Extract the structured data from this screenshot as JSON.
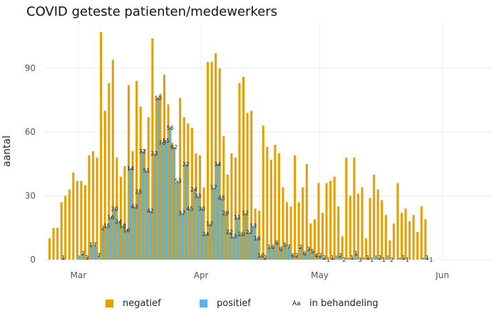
{
  "chart_data": {
    "type": "bar",
    "title": "COVID geteste patienten/medewerkers",
    "ylabel": "aantal",
    "xlabel": "",
    "ylim": [
      0,
      112
    ],
    "yticks": [
      0,
      30,
      60,
      90
    ],
    "x_ticks": [
      {
        "label": "Mar",
        "index": 7
      },
      {
        "label": "Apr",
        "index": 38
      },
      {
        "label": "May",
        "index": 68
      },
      {
        "label": "Jun",
        "index": 99
      }
    ],
    "grid": true,
    "legend_position": "bottom",
    "colors": {
      "negatief": "#E69F00",
      "positief": "#56B4E9"
    },
    "series": [
      {
        "name": "negatief",
        "values": [
          10,
          15,
          15,
          27,
          30,
          33,
          41,
          37,
          37,
          35,
          49,
          51,
          48,
          107,
          70,
          83,
          94,
          48,
          39,
          44,
          82,
          51,
          84,
          72,
          52,
          67,
          104,
          76,
          78,
          87,
          73,
          55,
          36,
          76,
          67,
          64,
          62,
          50,
          49,
          34,
          93,
          93,
          97,
          90,
          58,
          40,
          50,
          48,
          83,
          86,
          69,
          70,
          24,
          23,
          63,
          53,
          47,
          54,
          50,
          34,
          27,
          25,
          49,
          27,
          34,
          45,
          17,
          19,
          36,
          22,
          36,
          37,
          39,
          25,
          11,
          48,
          30,
          48,
          31,
          34,
          10,
          29,
          40,
          33,
          28,
          21,
          9,
          17,
          36,
          22,
          24,
          18,
          21,
          13,
          25,
          19
        ]
      },
      {
        "name": "positief",
        "values": [
          0,
          0,
          0,
          1,
          0,
          0,
          0,
          2,
          3,
          1,
          7,
          7,
          2,
          15,
          16,
          20,
          24,
          18,
          16,
          14,
          43,
          25,
          32,
          51,
          42,
          23,
          50,
          76,
          55,
          56,
          62,
          53,
          37,
          22,
          45,
          24,
          33,
          30,
          24,
          12,
          17,
          34,
          45,
          29,
          22,
          13,
          11,
          20,
          12,
          22,
          13,
          16,
          10,
          2,
          1,
          6,
          6,
          8,
          5,
          7,
          6,
          2,
          2,
          6,
          3,
          5,
          4,
          2,
          2,
          1,
          0,
          1,
          2,
          2,
          0,
          1,
          1,
          3,
          0,
          1,
          1,
          0,
          2,
          1,
          0,
          2,
          0,
          0,
          1,
          1,
          0,
          0,
          0,
          0,
          1,
          1
        ]
      }
    ],
    "annotations": [
      {
        "index": 3,
        "text": "1"
      },
      {
        "index": 8,
        "text": "2"
      },
      {
        "index": 9,
        "text": "3"
      },
      {
        "index": 10,
        "text": "1"
      },
      {
        "index": 11,
        "text": "7"
      },
      {
        "index": 12,
        "text": "7"
      },
      {
        "index": 13,
        "text": "2"
      },
      {
        "index": 14,
        "text": "15"
      },
      {
        "index": 15,
        "text": "16"
      },
      {
        "index": 16,
        "text": "20"
      },
      {
        "index": 17,
        "text": "24"
      },
      {
        "index": 18,
        "text": "18"
      },
      {
        "index": 19,
        "text": "16"
      },
      {
        "index": 20,
        "text": "14"
      },
      {
        "index": 21,
        "text": "43"
      },
      {
        "index": 22,
        "text": "25"
      },
      {
        "index": 23,
        "text": "32"
      },
      {
        "index": 24,
        "text": "51"
      },
      {
        "index": 25,
        "text": "42"
      },
      {
        "index": 26,
        "text": "23"
      },
      {
        "index": 27,
        "text": "50"
      },
      {
        "index": 28,
        "text": "76"
      },
      {
        "index": 29,
        "text": "55"
      },
      {
        "index": 30,
        "text": "56"
      },
      {
        "index": 31,
        "text": "62"
      },
      {
        "index": 32,
        "text": "53"
      },
      {
        "index": 33,
        "text": "37"
      },
      {
        "index": 34,
        "text": "22"
      },
      {
        "index": 35,
        "text": "45"
      },
      {
        "index": 36,
        "text": "24"
      },
      {
        "index": 37,
        "text": "33"
      },
      {
        "index": 38,
        "text": "30"
      },
      {
        "index": 39,
        "text": "24"
      },
      {
        "index": 40,
        "text": "12"
      },
      {
        "index": 41,
        "text": "17"
      },
      {
        "index": 42,
        "text": "34"
      },
      {
        "index": 43,
        "text": "45"
      },
      {
        "index": 44,
        "text": "29"
      },
      {
        "index": 45,
        "text": "22"
      },
      {
        "index": 46,
        "text": "13"
      },
      {
        "index": 47,
        "text": "11"
      },
      {
        "index": 48,
        "text": "20"
      },
      {
        "index": 49,
        "text": "12"
      },
      {
        "index": 50,
        "text": "22"
      },
      {
        "index": 51,
        "text": "13"
      },
      {
        "index": 52,
        "text": "16"
      },
      {
        "index": 53,
        "text": "10"
      },
      {
        "index": 54,
        "text": "2"
      },
      {
        "index": 55,
        "text": "1"
      },
      {
        "index": 56,
        "text": "6"
      },
      {
        "index": 57,
        "text": "6"
      },
      {
        "index": 58,
        "text": "8"
      },
      {
        "index": 59,
        "text": "5"
      },
      {
        "index": 60,
        "text": "7"
      },
      {
        "index": 61,
        "text": "6"
      },
      {
        "index": 62,
        "text": "2"
      },
      {
        "index": 63,
        "text": "2"
      },
      {
        "index": 64,
        "text": "6"
      },
      {
        "index": 65,
        "text": "3"
      },
      {
        "index": 66,
        "text": "5"
      },
      {
        "index": 67,
        "text": "4"
      },
      {
        "index": 68,
        "text": "2"
      },
      {
        "index": 69,
        "text": "2"
      },
      {
        "index": 70,
        "text": "1"
      },
      {
        "index": 71,
        "text": "1"
      },
      {
        "index": 73,
        "text": "2"
      },
      {
        "index": 74,
        "text": "2"
      },
      {
        "index": 76,
        "text": "1"
      },
      {
        "index": 77,
        "text": "1"
      },
      {
        "index": 78,
        "text": "3"
      },
      {
        "index": 80,
        "text": "1"
      },
      {
        "index": 81,
        "text": "1"
      },
      {
        "index": 83,
        "text": "2"
      },
      {
        "index": 84,
        "text": "1"
      },
      {
        "index": 86,
        "text": "2"
      },
      {
        "index": 89,
        "text": "1"
      },
      {
        "index": 90,
        "text": "1"
      },
      {
        "index": 95,
        "text": "1"
      },
      {
        "index": 96,
        "text": "1"
      }
    ]
  },
  "legend": {
    "items": [
      {
        "name": "negatief",
        "type": "swatch",
        "color": "#E69F00"
      },
      {
        "name": "positief",
        "type": "swatch",
        "color": "#56B4E9"
      },
      {
        "name": "in behandeling",
        "type": "text",
        "symbol": "Aa"
      }
    ]
  }
}
